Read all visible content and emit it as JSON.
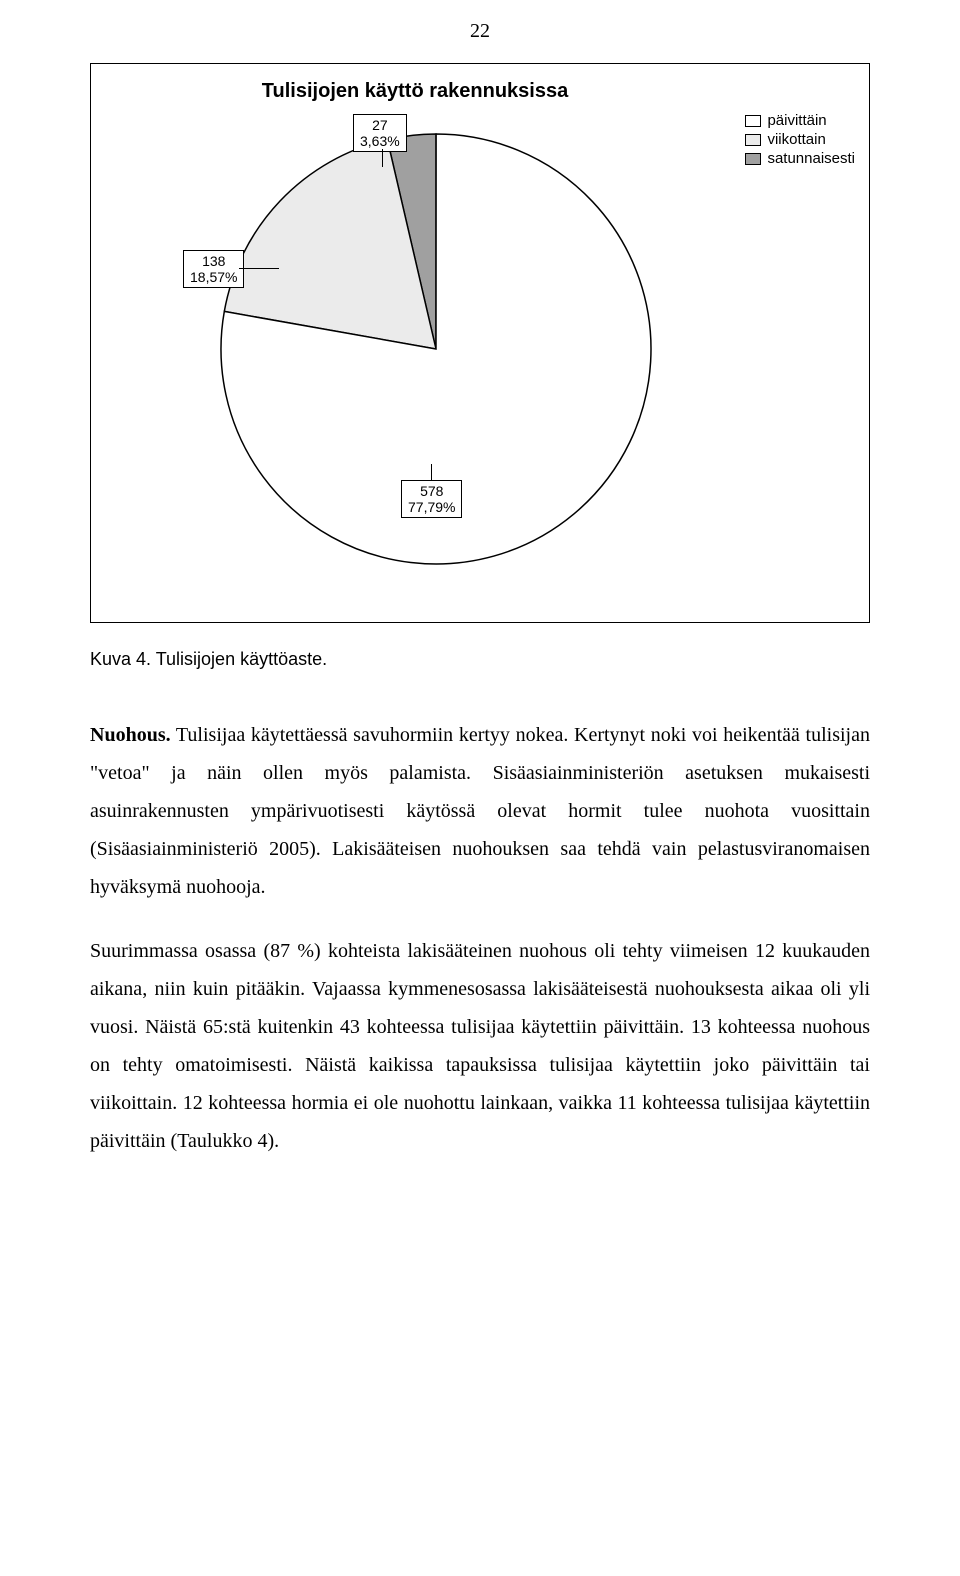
{
  "page_number": "22",
  "chart": {
    "title": "Tulisijojen käyttö rakennuksissa",
    "type": "pie",
    "colors": {
      "paivittain": "#ffffff",
      "viikottain": "#ebebeb",
      "satunnaisesti": "#a0a0a0",
      "stroke": "#000000",
      "background": "#ffffff"
    },
    "legend": [
      {
        "label": "päivittäin",
        "fill": "#ffffff"
      },
      {
        "label": "viikottain",
        "fill": "#ebebeb"
      },
      {
        "label": "satunnaisesti",
        "fill": "#a0a0a0"
      }
    ],
    "slices": [
      {
        "key": "satunnaisesti",
        "count": 27,
        "pct": "3,63%",
        "fill": "#a0a0a0",
        "angle_deg": 13.08
      },
      {
        "key": "viikottain",
        "count": 138,
        "pct": "18,57%",
        "fill": "#ebebeb",
        "angle_deg": 66.85
      },
      {
        "key": "paivittain",
        "count": 578,
        "pct": "77,79%",
        "fill": "#ffffff",
        "angle_deg": 280.04
      }
    ],
    "callouts": {
      "satunnaisesti": "27\n3,63%",
      "viikottain": "138\n18,57%",
      "paivittain": "578\n77,79%"
    }
  },
  "caption": "Kuva 4. Tulisijojen käyttöaste.",
  "paragraphs": {
    "p1_runin": "Nuohous.",
    "p1_rest": " Tulisijaa käytettäessä savuhormiin kertyy nokea. Kertynyt noki voi heikentää tulisijan \"vetoa\" ja näin ollen myös palamista. Sisäasiainministeriön asetuksen mukaisesti asuinrakennusten ympärivuotisesti käytössä olevat hormit tulee nuohota vuosittain (Sisäasiainministeriö 2005). Lakisääteisen nuohouksen saa tehdä vain pelastusviranomaisen hyväksymä nuohooja.",
    "p2": "Suurimmassa osassa (87 %) kohteista lakisääteinen nuohous oli tehty viimeisen 12 kuukauden aikana, niin kuin pitääkin. Vajaassa kymmenesosassa lakisääteisestä nuohouksesta aikaa oli yli vuosi. Näistä 65:stä kuitenkin 43 kohteessa tulisijaa käytettiin päivittäin. 13 kohteessa nuohous on tehty omatoimisesti. Näistä kaikissa tapauksissa tulisijaa käytettiin joko päivittäin tai viikoittain. 12 kohteessa hormia ei ole nuohottu lainkaan, vaikka 11 kohteessa tulisijaa käytettiin päivittäin (Taulukko 4)."
  }
}
